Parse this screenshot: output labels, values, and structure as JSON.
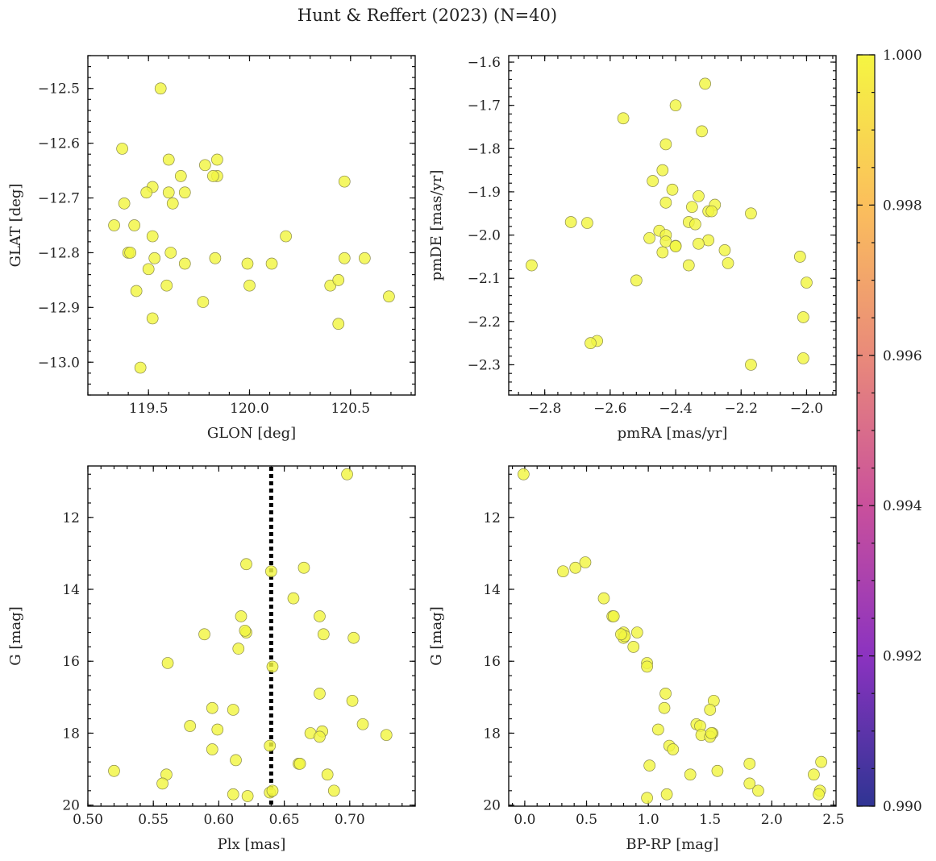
{
  "figure": {
    "title": "Hunt & Reffert (2023) (N=40)"
  },
  "colorbar": {
    "min": 0.99,
    "max": 1.0,
    "ticks": [
      "0.990",
      "0.992",
      "0.994",
      "0.996",
      "0.998",
      "1.000"
    ],
    "tick_values": [
      0.99,
      0.992,
      0.994,
      0.996,
      0.998,
      1.0
    ],
    "colormap": "plasma",
    "colors": [
      "#2f3493",
      "#8b33c0",
      "#c9509c",
      "#e98a7a",
      "#fbbf5c",
      "#f5f542"
    ]
  },
  "point_color": "#f2f542",
  "chart_data": [
    {
      "id": "sky",
      "type": "scatter",
      "xlabel": "GLON [deg]",
      "ylabel": "GLAT [deg]",
      "xlim": [
        119.2,
        120.82
      ],
      "ylim": [
        -13.06,
        -12.44
      ],
      "invert_y": false,
      "xticks": [
        119.5,
        120.0,
        120.5
      ],
      "xtick_labels": [
        "119.5",
        "120.0",
        "120.5"
      ],
      "yticks": [
        -13.0,
        -12.9,
        -12.8,
        -12.7,
        -12.6,
        -12.5
      ],
      "ytick_labels": [
        "−13.0",
        "−12.9",
        "−12.8",
        "−12.7",
        "−12.6",
        "−12.5"
      ],
      "x": [
        119.56,
        119.37,
        119.6,
        119.84,
        119.52,
        119.66,
        119.78,
        119.84,
        119.38,
        119.49,
        119.6,
        119.68,
        119.62,
        119.33,
        119.43,
        119.52,
        120.47,
        120.18,
        119.4,
        119.61,
        119.53,
        119.68,
        119.83,
        119.99,
        120.11,
        120.57,
        120.47,
        119.5,
        120.0,
        119.59,
        120.4,
        120.44,
        119.44,
        119.77,
        119.52,
        120.69,
        120.44,
        119.46,
        119.41,
        119.82
      ],
      "y": [
        -12.5,
        -12.61,
        -12.63,
        -12.63,
        -12.68,
        -12.66,
        -12.64,
        -12.66,
        -12.71,
        -12.69,
        -12.69,
        -12.69,
        -12.71,
        -12.75,
        -12.75,
        -12.77,
        -12.67,
        -12.77,
        -12.8,
        -12.8,
        -12.81,
        -12.82,
        -12.81,
        -12.82,
        -12.82,
        -12.81,
        -12.81,
        -12.83,
        -12.86,
        -12.86,
        -12.86,
        -12.85,
        -12.87,
        -12.89,
        -12.92,
        -12.88,
        -12.93,
        -13.01,
        -12.8,
        -12.66
      ]
    },
    {
      "id": "pm",
      "type": "scatter",
      "xlabel": "pmRA [mas/yr]",
      "ylabel": "pmDE [mas/yr]",
      "xlim": [
        -2.91,
        -1.91
      ],
      "ylim": [
        -2.37,
        -1.585
      ],
      "invert_y": false,
      "xticks": [
        -2.8,
        -2.6,
        -2.4,
        -2.2,
        -2.0
      ],
      "xtick_labels": [
        "−2.8",
        "−2.6",
        "−2.4",
        "−2.2",
        "−2.0"
      ],
      "yticks": [
        -2.3,
        -2.2,
        -2.1,
        -2.0,
        -1.9,
        -1.8,
        -1.7,
        -1.6
      ],
      "ytick_labels": [
        "−2.3",
        "−2.2",
        "−2.1",
        "−2.0",
        "−1.9",
        "−1.8",
        "−1.7",
        "−1.6"
      ],
      "x": [
        -2.31,
        -2.4,
        -2.56,
        -2.32,
        -2.43,
        -2.44,
        -2.47,
        -2.41,
        -2.43,
        -2.33,
        -2.35,
        -2.28,
        -2.3,
        -2.72,
        -2.67,
        -2.36,
        -2.17,
        -2.45,
        -2.43,
        -2.48,
        -2.29,
        -2.43,
        -2.4,
        -2.3,
        -2.33,
        -2.25,
        -2.44,
        -2.24,
        -2.02,
        -2.36,
        -2.84,
        -2.0,
        -2.52,
        -2.01,
        -2.64,
        -2.66,
        -2.01,
        -2.17,
        -2.4,
        -2.34
      ],
      "y": [
        -1.65,
        -1.7,
        -1.73,
        -1.76,
        -1.79,
        -1.85,
        -1.875,
        -1.895,
        -1.925,
        -1.91,
        -1.935,
        -1.93,
        -1.945,
        -1.97,
        -1.972,
        -1.97,
        -1.95,
        -1.99,
        -2.0,
        -2.007,
        -1.945,
        -2.015,
        -2.025,
        -2.012,
        -2.02,
        -2.035,
        -2.04,
        -2.065,
        -2.05,
        -2.07,
        -2.07,
        -2.11,
        -2.105,
        -2.19,
        -2.245,
        -2.25,
        -2.285,
        -2.3,
        -2.026,
        -1.975
      ]
    },
    {
      "id": "plx_g",
      "type": "scatter",
      "xlabel": "Plx [mas]",
      "ylabel": "G [mag]",
      "xlim": [
        0.5,
        0.75
      ],
      "ylim": [
        20.03,
        10.57
      ],
      "invert_y": true,
      "xticks": [
        0.5,
        0.55,
        0.6,
        0.65,
        0.7
      ],
      "xtick_labels": [
        "0.50",
        "0.55",
        "0.60",
        "0.65",
        "0.70"
      ],
      "yticks": [
        12,
        14,
        16,
        18,
        20
      ],
      "ytick_labels": [
        "12",
        "14",
        "16",
        "18",
        "20"
      ],
      "vline": {
        "x": 0.64,
        "style": "dotted"
      },
      "x": [
        0.698,
        0.621,
        0.64,
        0.665,
        0.657,
        0.617,
        0.677,
        0.621,
        0.589,
        0.68,
        0.703,
        0.615,
        0.641,
        0.561,
        0.677,
        0.702,
        0.595,
        0.611,
        0.71,
        0.728,
        0.578,
        0.679,
        0.67,
        0.677,
        0.599,
        0.639,
        0.595,
        0.613,
        0.661,
        0.662,
        0.52,
        0.683,
        0.56,
        0.557,
        0.688,
        0.611,
        0.622,
        0.639,
        0.62,
        0.641
      ],
      "y": [
        10.8,
        13.3,
        13.5,
        13.4,
        14.25,
        14.75,
        14.75,
        15.2,
        15.25,
        15.25,
        15.35,
        15.65,
        16.15,
        16.05,
        16.9,
        17.1,
        17.3,
        17.35,
        17.75,
        18.05,
        17.8,
        17.95,
        18.0,
        18.1,
        17.9,
        18.35,
        18.45,
        18.75,
        18.85,
        18.85,
        19.05,
        19.15,
        19.15,
        19.4,
        19.6,
        19.7,
        19.75,
        19.65,
        15.15,
        19.6
      ]
    },
    {
      "id": "cmd",
      "type": "scatter",
      "xlabel": "BP-RP [mag]",
      "ylabel": "G [mag]",
      "xlim": [
        -0.13,
        2.52
      ],
      "ylim": [
        20.03,
        10.57
      ],
      "invert_y": true,
      "xticks": [
        0.0,
        0.5,
        1.0,
        1.5,
        2.0,
        2.5
      ],
      "xtick_labels": [
        "0.0",
        "0.5",
        "1.0",
        "1.5",
        "2.0",
        "2.5"
      ],
      "yticks": [
        12,
        14,
        16,
        18,
        20
      ],
      "ytick_labels": [
        "12",
        "14",
        "16",
        "18",
        "20"
      ],
      "x": [
        -0.01,
        0.31,
        0.41,
        0.49,
        0.64,
        0.71,
        0.72,
        0.8,
        0.8,
        0.91,
        0.88,
        0.99,
        0.99,
        1.14,
        1.13,
        1.53,
        1.5,
        1.39,
        1.42,
        1.43,
        1.52,
        1.5,
        1.17,
        1.08,
        1.2,
        1.01,
        1.82,
        2.4,
        1.34,
        1.56,
        2.34,
        1.82,
        1.89,
        2.39,
        2.38,
        1.15,
        0.99,
        1.51,
        0.81,
        0.78
      ],
      "y": [
        10.8,
        13.5,
        13.4,
        13.25,
        14.25,
        14.75,
        14.75,
        15.2,
        15.35,
        15.2,
        15.6,
        16.05,
        16.15,
        16.9,
        17.3,
        17.1,
        17.35,
        17.75,
        17.8,
        18.05,
        18.0,
        18.1,
        18.35,
        17.9,
        18.45,
        18.9,
        18.85,
        18.8,
        19.15,
        19.05,
        19.15,
        19.4,
        19.6,
        19.6,
        19.7,
        19.7,
        19.8,
        18.0,
        15.3,
        15.25
      ]
    }
  ]
}
